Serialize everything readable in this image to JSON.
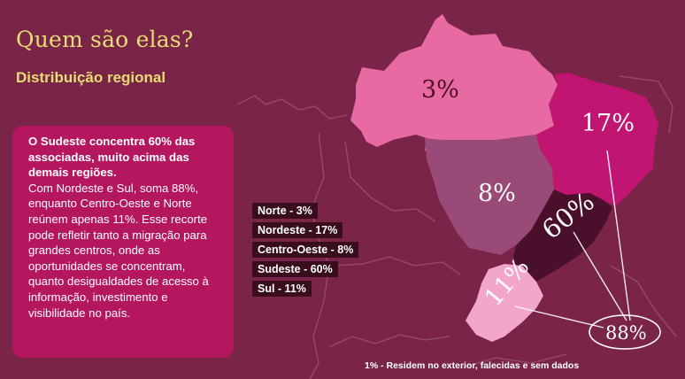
{
  "header": {
    "title": "Quem são elas?",
    "subtitle": "Distribuição regional"
  },
  "info_box": {
    "lead": "O Sudeste concentra 60% das associadas, muito acima das demais regiões.",
    "body": "Com Nordeste e Sul, soma 88%, enquanto Centro-Oeste e Norte reúnem apenas 11%. Esse recorte pode refletir tanto a migração para grandes centros, onde as oportunidades se concentram, quanto desigualdades de acesso à informação, investimento e visibilidade no país."
  },
  "legend": [
    {
      "label": "Norte - 3%"
    },
    {
      "label": "Nordeste - 17%"
    },
    {
      "label": "Centro-Oeste - 8%"
    },
    {
      "label": "Sudeste - 60%"
    },
    {
      "label": "Sul - 11%"
    }
  ],
  "map": {
    "regions": {
      "norte": {
        "name": "Norte",
        "label": "3%",
        "percent": 3,
        "color": "#e86aa3"
      },
      "nordeste": {
        "name": "Nordeste",
        "label": "17%",
        "percent": 17,
        "color": "#c01570"
      },
      "centro_oeste": {
        "name": "Centro-Oeste",
        "label": "8%",
        "percent": 8,
        "color": "#9a4a76"
      },
      "sudeste": {
        "name": "Sudeste",
        "label": "60%",
        "percent": 60,
        "color": "#4a0f2a"
      },
      "sul": {
        "name": "Sul",
        "label": "11%",
        "percent": 11,
        "color": "#f2a6cb"
      }
    },
    "total": {
      "label": "88%",
      "percent": 88
    }
  },
  "footnote": "1% - Residem no exterior, falecidas e sem dados",
  "colors": {
    "background": "#7a2448",
    "title": "#e8dc74",
    "info_box": "#b5175f",
    "legend_bg": "#3a0d1d"
  }
}
